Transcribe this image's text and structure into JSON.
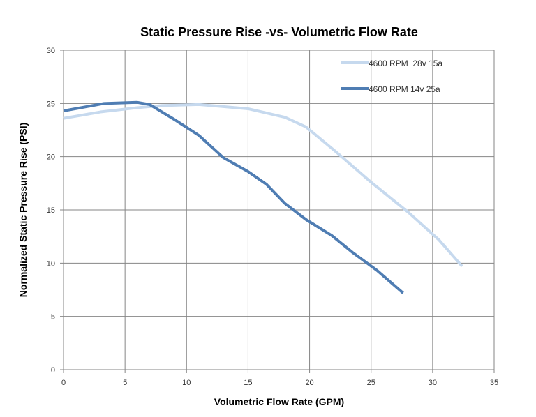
{
  "chart_data": {
    "type": "line",
    "title": "Static Pressure Rise -vs- Volumetric Flow Rate",
    "xlabel": "Volumetric Flow Rate (GPM)",
    "ylabel": "Normalized Static Pressure Rise (PSI)",
    "xlim": [
      0,
      35
    ],
    "ylim": [
      0,
      30
    ],
    "xticks": [
      0,
      5,
      10,
      15,
      20,
      25,
      30,
      35
    ],
    "yticks": [
      0,
      5,
      10,
      15,
      20,
      25,
      30
    ],
    "grid": true,
    "legend_position": "top-right",
    "series": [
      {
        "name": "4600 RPM  28v 15a",
        "color": "#c6d9ee",
        "x": [
          0,
          3,
          6,
          8,
          11,
          13,
          15,
          18,
          19.7,
          22,
          25,
          28,
          30.5,
          32.4
        ],
        "y": [
          23.6,
          24.2,
          24.6,
          24.8,
          24.9,
          24.7,
          24.5,
          23.7,
          22.8,
          20.6,
          17.6,
          14.8,
          12.2,
          9.7
        ]
      },
      {
        "name": "4600 RPM 14v 25a",
        "color": "#4f7db3",
        "x": [
          0,
          3.3,
          6,
          7,
          9,
          11,
          13,
          15,
          16.5,
          18,
          19.7,
          21.8,
          23.5,
          25.5,
          27.6
        ],
        "y": [
          24.3,
          25.0,
          25.1,
          24.9,
          23.5,
          22.0,
          19.9,
          18.6,
          17.4,
          15.6,
          14.1,
          12.6,
          11.0,
          9.3,
          7.2
        ]
      }
    ]
  }
}
